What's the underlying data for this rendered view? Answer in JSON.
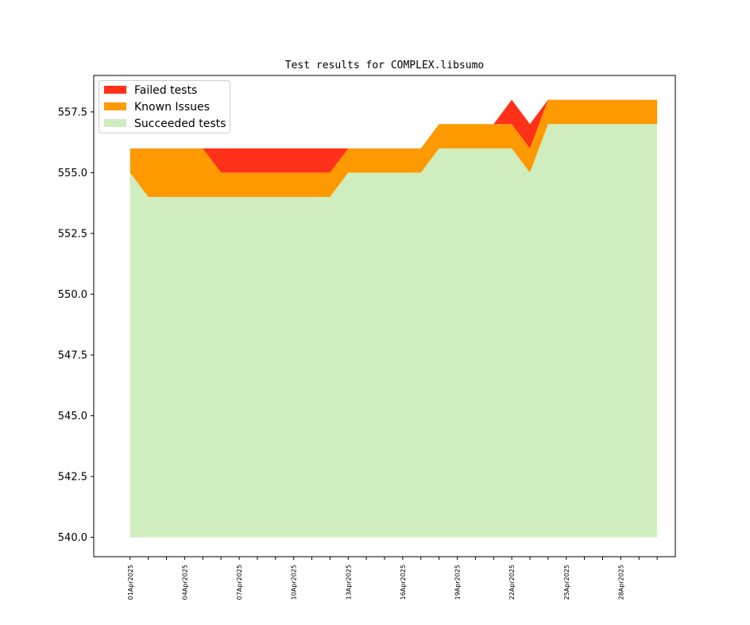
{
  "chart_data": {
    "type": "area",
    "title": "Test results for COMPLEX.libsumo",
    "xlabel": "",
    "ylabel": "",
    "ylim": [
      539.2,
      559.0
    ],
    "yticks": [
      540.0,
      542.5,
      545.0,
      547.5,
      550.0,
      552.5,
      555.0,
      557.5
    ],
    "ytick_labels": [
      "540.0",
      "542.5",
      "545.0",
      "547.5",
      "550.0",
      "552.5",
      "555.0",
      "557.5"
    ],
    "baseline": 540,
    "x": [
      "2025-04-01",
      "2025-04-02",
      "2025-04-03",
      "2025-04-04",
      "2025-04-05",
      "2025-04-06",
      "2025-04-07",
      "2025-04-08",
      "2025-04-09",
      "2025-04-10",
      "2025-04-11",
      "2025-04-12",
      "2025-04-13",
      "2025-04-14",
      "2025-04-15",
      "2025-04-16",
      "2025-04-17",
      "2025-04-18",
      "2025-04-19",
      "2025-04-20",
      "2025-04-21",
      "2025-04-22",
      "2025-04-23",
      "2025-04-24",
      "2025-04-25",
      "2025-04-26",
      "2025-04-27",
      "2025-04-28",
      "2025-04-29",
      "2025-04-30"
    ],
    "xlim": [
      "2025-03-30",
      "2025-05-01"
    ],
    "xtick_labels": [
      "01Apr2025",
      "04Apr2025",
      "07Apr2025",
      "10Apr2025",
      "13Apr2025",
      "16Apr2025",
      "19Apr2025",
      "22Apr2025",
      "25Apr2025",
      "28Apr2025"
    ],
    "xtick_label_dates": [
      "2025-04-01",
      "2025-04-04",
      "2025-04-07",
      "2025-04-10",
      "2025-04-13",
      "2025-04-16",
      "2025-04-19",
      "2025-04-22",
      "2025-04-25",
      "2025-04-28"
    ],
    "series": [
      {
        "name": "Succeeded tests",
        "color": "#cfedbf",
        "values": [
          555,
          554,
          554,
          554,
          554,
          554,
          554,
          554,
          554,
          554,
          554,
          554,
          555,
          555,
          555,
          555,
          555,
          556,
          556,
          556,
          556,
          556,
          555,
          557,
          557,
          557,
          557,
          557,
          557,
          557
        ]
      },
      {
        "name": "Known Issues",
        "color": "#ff9900",
        "values": [
          1,
          2,
          2,
          2,
          2,
          1,
          1,
          1,
          1,
          1,
          1,
          1,
          1,
          1,
          1,
          1,
          1,
          1,
          1,
          1,
          1,
          1,
          1,
          1,
          1,
          1,
          1,
          1,
          1,
          1
        ]
      },
      {
        "name": "Failed tests",
        "color": "#ff3118",
        "values": [
          0,
          0,
          0,
          0,
          0,
          1,
          1,
          1,
          1,
          1,
          1,
          1,
          0,
          0,
          0,
          0,
          0,
          0,
          0,
          0,
          0,
          1,
          1,
          0,
          0,
          0,
          0,
          0,
          0,
          0
        ]
      }
    ],
    "legend": {
      "position": "top-left",
      "order": [
        "Failed tests",
        "Known Issues",
        "Succeeded tests"
      ]
    },
    "grid": false
  }
}
